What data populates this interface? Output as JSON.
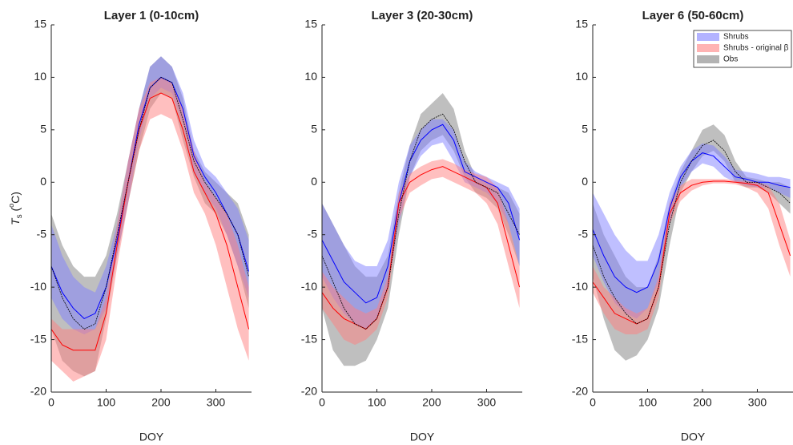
{
  "chart_data": [
    {
      "type": "line",
      "title": "Layer 1 (0-10cm)",
      "xlabel": "DOY",
      "ylabel": {
        "main": "T",
        "sub": "s",
        "open": " (",
        "sup": "o",
        "close": "C)"
      },
      "xlim": [
        0,
        365
      ],
      "ylim": [
        -20,
        15
      ],
      "xticks": [
        0,
        100,
        200,
        300
      ],
      "yticks": [
        -20,
        -15,
        -10,
        -5,
        0,
        5,
        10,
        15
      ],
      "x": [
        0,
        20,
        40,
        60,
        80,
        100,
        120,
        140,
        160,
        180,
        200,
        220,
        240,
        260,
        280,
        300,
        320,
        340,
        360
      ],
      "series": [
        {
          "color": "#000000",
          "band_color": "#808080",
          "values": [
            -8,
            -11,
            -13,
            -14,
            -13.5,
            -10,
            -5,
            0,
            5,
            9,
            10,
            9.5,
            6,
            2,
            0,
            -1.5,
            -3,
            -5,
            -9
          ],
          "lower": [
            -14,
            -17,
            -18,
            -18.5,
            -18,
            -13,
            -7,
            -2,
            3,
            7,
            8.5,
            8,
            4,
            0.5,
            -2,
            -3,
            -5,
            -8,
            -12
          ],
          "upper": [
            -3,
            -6,
            -8,
            -9,
            -9,
            -7,
            -3,
            2,
            7,
            11,
            12,
            11,
            8,
            3,
            1,
            0,
            -1,
            -2,
            -5
          ]
        },
        {
          "color": "#0000ff",
          "band_color": "#8080ff",
          "values": [
            -8,
            -10.5,
            -12,
            -13,
            -12.5,
            -10,
            -5.5,
            0,
            5.5,
            9,
            10,
            9.5,
            7,
            2.5,
            0.5,
            -1,
            -3,
            -5,
            -8.5
          ],
          "lower": [
            -11,
            -13,
            -14,
            -14.5,
            -14,
            -12,
            -7,
            -2,
            4,
            8,
            9,
            8.5,
            5.5,
            1,
            -1,
            -2.5,
            -5,
            -8,
            -11
          ],
          "upper": [
            -4,
            -7,
            -9,
            -10,
            -10.5,
            -8,
            -4,
            2,
            7,
            11,
            12,
            11,
            8.5,
            4,
            1.5,
            0.5,
            -1,
            -2.5,
            -5.5
          ]
        },
        {
          "color": "#ff0000",
          "band_color": "#ff8080",
          "values": [
            -14,
            -15.5,
            -16,
            -16,
            -16,
            -12.5,
            -6,
            0,
            5,
            8,
            8.5,
            8,
            5,
            1,
            -1,
            -3,
            -6,
            -10,
            -14
          ],
          "lower": [
            -17,
            -18,
            -19,
            -18.5,
            -18,
            -15,
            -8,
            -2,
            3,
            6,
            6.5,
            6,
            3,
            -1,
            -3,
            -6,
            -10,
            -14,
            -17
          ],
          "upper": [
            -13,
            -14,
            -14,
            -14,
            -14,
            -11,
            -4,
            2,
            7,
            9.5,
            10,
            9.5,
            7,
            3,
            0,
            -1.5,
            -3,
            -6,
            -10
          ]
        }
      ]
    },
    {
      "type": "line",
      "title": "Layer 3 (20-30cm)",
      "xlabel": "DOY",
      "xlim": [
        0,
        365
      ],
      "ylim": [
        -20,
        15
      ],
      "xticks": [
        0,
        100,
        200,
        300
      ],
      "yticks": [
        -20,
        -15,
        -10,
        -5,
        0,
        5,
        10,
        15
      ],
      "x": [
        0,
        20,
        40,
        60,
        80,
        100,
        120,
        140,
        160,
        180,
        200,
        220,
        240,
        260,
        280,
        300,
        320,
        340,
        360
      ],
      "series": [
        {
          "color": "#000000",
          "band_color": "#808080",
          "values": [
            -7,
            -9.5,
            -12,
            -13.5,
            -14,
            -13,
            -10,
            -3,
            2,
            5,
            6,
            6.5,
            5,
            2,
            0,
            -0.5,
            -1,
            -3,
            -5
          ],
          "lower": [
            -12,
            -16,
            -17.5,
            -17.5,
            -17,
            -15,
            -12,
            -5,
            0.5,
            3,
            4,
            4.5,
            3,
            0.5,
            -1,
            -1.5,
            -2.5,
            -5,
            -8
          ],
          "upper": [
            -2,
            -4,
            -6,
            -8,
            -9,
            -9,
            -7,
            -1,
            3.5,
            6.5,
            7.5,
            8.5,
            7,
            3,
            0.5,
            0,
            -0.5,
            -1,
            -3
          ]
        },
        {
          "color": "#0000ff",
          "band_color": "#8080ff",
          "values": [
            -5.5,
            -7.5,
            -9.5,
            -10.5,
            -11.5,
            -11,
            -8,
            -2,
            2,
            4,
            5,
            5.5,
            4,
            1,
            0.5,
            0,
            -0.5,
            -2,
            -5.5
          ],
          "lower": [
            -9,
            -11,
            -12.5,
            -13.5,
            -14,
            -13,
            -10,
            -4,
            0.5,
            2.5,
            3.5,
            3.8,
            2,
            0,
            -0.5,
            -1,
            -2,
            -4,
            -8
          ],
          "upper": [
            -2,
            -4,
            -6,
            -7.5,
            -8,
            -8,
            -5.5,
            0,
            3.5,
            5,
            6,
            6,
            5,
            2,
            1,
            0.5,
            0,
            -0.5,
            -2.5
          ]
        },
        {
          "color": "#ff0000",
          "band_color": "#ff8080",
          "values": [
            -10.5,
            -12,
            -13,
            -13.5,
            -14,
            -13,
            -10,
            -2,
            0,
            0.7,
            1.2,
            1.5,
            1,
            0.5,
            0,
            -0.5,
            -2,
            -6,
            -10
          ],
          "lower": [
            -12,
            -13.5,
            -15,
            -15.5,
            -15,
            -14,
            -11,
            -3.5,
            -1,
            -0.3,
            0.3,
            0.5,
            0,
            -0.5,
            -1,
            -2,
            -4,
            -8,
            -12
          ],
          "upper": [
            -8.5,
            -10,
            -11,
            -12,
            -12.5,
            -12,
            -9,
            -1,
            0.8,
            1.5,
            2,
            2.2,
            1.8,
            1.2,
            0.8,
            0.5,
            -0.5,
            -4,
            -8
          ]
        }
      ]
    },
    {
      "type": "line",
      "title": "Layer 6 (50-60cm)",
      "xlabel": "DOY",
      "legend": "upper right",
      "xlim": [
        0,
        365
      ],
      "ylim": [
        -20,
        15
      ],
      "xticks": [
        0,
        100,
        200,
        300
      ],
      "yticks": [
        -20,
        -15,
        -10,
        -5,
        0,
        5,
        10,
        15
      ],
      "x": [
        0,
        20,
        40,
        60,
        80,
        100,
        120,
        140,
        160,
        180,
        200,
        220,
        240,
        260,
        280,
        300,
        320,
        340,
        360
      ],
      "series": [
        {
          "name": "Obs",
          "color": "#000000",
          "band_color": "#808080",
          "values": [
            -6,
            -9,
            -11,
            -12.5,
            -13.5,
            -13,
            -10,
            -4,
            0,
            2,
            3.5,
            4,
            3,
            1,
            0,
            0,
            -0.5,
            -1,
            -2
          ],
          "lower": [
            -9,
            -13,
            -16,
            -17,
            -16.5,
            -15,
            -12,
            -6,
            -1,
            1,
            2.5,
            3,
            2,
            0,
            -0.5,
            -0.5,
            -1,
            -2,
            -3
          ],
          "upper": [
            -2,
            -5,
            -7,
            -9,
            -10,
            -10,
            -7,
            -2,
            1,
            3,
            5,
            5.5,
            4.5,
            2,
            0.5,
            0.3,
            0,
            0,
            -0.5
          ]
        },
        {
          "name": "Shrubs",
          "color": "#0000ff",
          "band_color": "#8080ff",
          "values": [
            -4.5,
            -7,
            -9,
            -10,
            -10.5,
            -10,
            -7.5,
            -2.5,
            0.5,
            2,
            2.8,
            2.5,
            1.5,
            0.5,
            0.3,
            0,
            0,
            -0.3,
            -0.5
          ],
          "lower": [
            -7,
            -9.5,
            -11.5,
            -12.5,
            -13,
            -12,
            -9.5,
            -4,
            -0.5,
            1,
            1.8,
            1.5,
            0.5,
            0,
            -0.3,
            -0.5,
            -0.5,
            -1,
            -1.5
          ],
          "upper": [
            -1,
            -3,
            -5,
            -6.5,
            -7.5,
            -7.5,
            -5,
            -1,
            1.5,
            3,
            3.7,
            3.5,
            2.5,
            1.2,
            1,
            0.8,
            0.5,
            0.5,
            0.3
          ]
        },
        {
          "name": "Shrubs - original β",
          "color": "#ff0000",
          "band_color": "#ff8080",
          "values": [
            -9.5,
            -11,
            -12.5,
            -13,
            -13.5,
            -13,
            -10,
            -3,
            -1,
            -0.3,
            0,
            0.1,
            0.1,
            0,
            -0.1,
            -0.3,
            -1,
            -4,
            -7
          ],
          "lower": [
            -10.5,
            -12.5,
            -14,
            -14.5,
            -14.5,
            -14,
            -11,
            -4,
            -1.8,
            -0.8,
            -0.3,
            -0.1,
            -0.1,
            -0.2,
            -0.5,
            -1,
            -2.5,
            -6,
            -9
          ],
          "upper": [
            -8,
            -10,
            -11,
            -12,
            -12.5,
            -12,
            -9,
            -2,
            -0.3,
            0.3,
            0.3,
            0.3,
            0.3,
            0.2,
            0.1,
            0,
            -0.3,
            -2,
            -5.5
          ]
        }
      ]
    }
  ]
}
